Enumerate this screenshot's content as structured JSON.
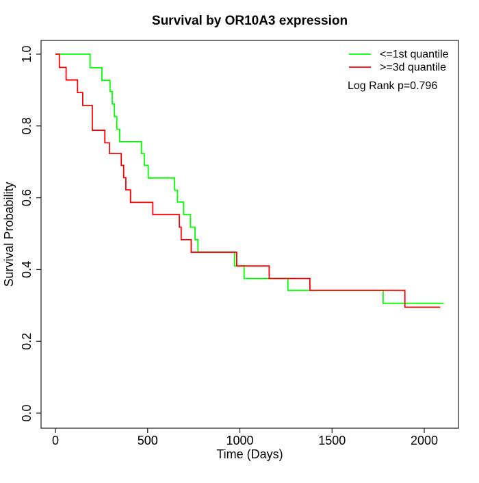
{
  "title": "Survival by OR10A3 expression",
  "chart_data": {
    "type": "line",
    "subtype": "kaplan-meier-step",
    "title": "Survival by OR10A3 expression",
    "xlabel": "Time (Days)",
    "ylabel": "Survival Probability",
    "xlim": [
      0,
      2182
    ],
    "ylim": [
      0,
      1
    ],
    "x_ticks": [
      0,
      500,
      1000,
      1500,
      2000
    ],
    "y_ticks": [
      0.0,
      0.2,
      0.4,
      0.6,
      0.8,
      1.0
    ],
    "grid": false,
    "legend_position": "top-right",
    "annotation": "Log Rank p=0.796",
    "series": [
      {
        "name": "<=1st quantile",
        "color": "#00FF00",
        "end_time": 2105,
        "points": [
          [
            0,
            1.0
          ],
          [
            188,
            0.962
          ],
          [
            252,
            0.927
          ],
          [
            296,
            0.896
          ],
          [
            308,
            0.861
          ],
          [
            320,
            0.826
          ],
          [
            333,
            0.791
          ],
          [
            348,
            0.756
          ],
          [
            466,
            0.723
          ],
          [
            482,
            0.69
          ],
          [
            503,
            0.655
          ],
          [
            646,
            0.621
          ],
          [
            662,
            0.588
          ],
          [
            695,
            0.553
          ],
          [
            732,
            0.518
          ],
          [
            757,
            0.483
          ],
          [
            773,
            0.448
          ],
          [
            971,
            0.41
          ],
          [
            1023,
            0.375
          ],
          [
            1261,
            0.342
          ],
          [
            1777,
            0.306
          ]
        ]
      },
      {
        "name": ">=3d quantile",
        "color": "#FF0000",
        "end_time": 2087,
        "points": [
          [
            0,
            1.0
          ],
          [
            21,
            0.963
          ],
          [
            58,
            0.928
          ],
          [
            120,
            0.893
          ],
          [
            148,
            0.857
          ],
          [
            200,
            0.788
          ],
          [
            268,
            0.753
          ],
          [
            293,
            0.723
          ],
          [
            357,
            0.69
          ],
          [
            370,
            0.656
          ],
          [
            382,
            0.622
          ],
          [
            407,
            0.587
          ],
          [
            528,
            0.553
          ],
          [
            672,
            0.518
          ],
          [
            682,
            0.483
          ],
          [
            736,
            0.448
          ],
          [
            983,
            0.41
          ],
          [
            1159,
            0.375
          ],
          [
            1380,
            0.342
          ],
          [
            1895,
            0.295
          ]
        ]
      }
    ]
  }
}
